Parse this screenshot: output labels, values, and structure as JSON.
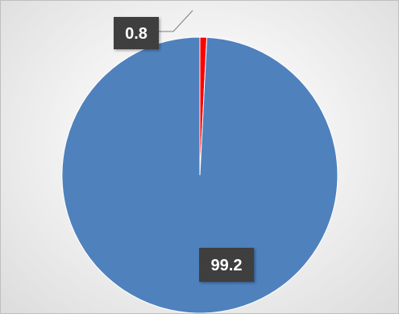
{
  "chart_data": {
    "type": "pie",
    "title": "",
    "slices": [
      {
        "label": "",
        "value": 0.8,
        "display": "0.8",
        "color": "#ff0000"
      },
      {
        "label": "",
        "value": 99.2,
        "display": "99.2",
        "color": "#4f81bd"
      }
    ],
    "start_angle_deg": 0,
    "direction": "clockwise",
    "legend": "none",
    "data_labels": true,
    "label_box_color": "#3a3a3a",
    "leader_line_color": "#7f7f7f"
  }
}
